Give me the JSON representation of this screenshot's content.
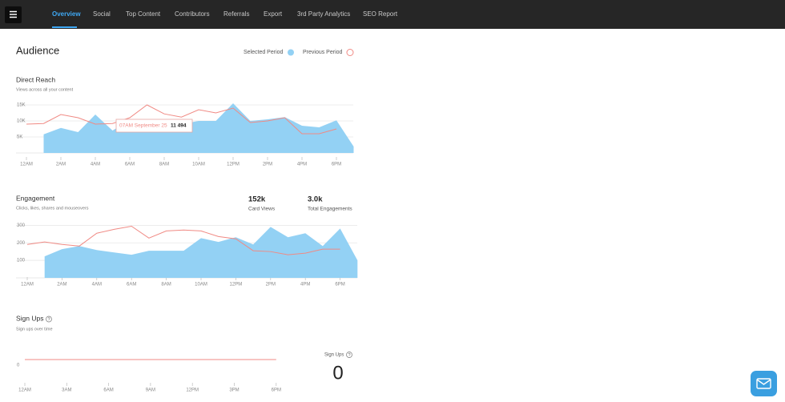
{
  "nav": {
    "items": [
      "Overview",
      "Social",
      "Top Content",
      "Contributors",
      "Referrals",
      "Export",
      "3rd Party Analytics",
      "SEO Report"
    ]
  },
  "audience": {
    "title": "Audience"
  },
  "tooltip": {
    "time": "07AM September 25",
    "value": "11 494"
  },
  "stats": [
    {
      "value": "152k",
      "label": "Card Views"
    },
    {
      "value": "3.0k",
      "label": "Total Engagements"
    }
  ],
  "signup_widget": {
    "label": "Sign Ups",
    "value": "0"
  },
  "charts": [
    {
      "type": "area",
      "title": "Direct Reach",
      "subtitle": "Views across all your content",
      "categories": [
        "12AM",
        null,
        "2AM",
        null,
        "4AM",
        null,
        "6AM",
        null,
        "8AM",
        null,
        "10AM",
        null,
        "12PM",
        null,
        "2PM",
        null,
        "4PM",
        null,
        "6PM",
        null
      ],
      "series": [
        {
          "name": "Selected Period",
          "type": "area",
          "color": "#93d1f4",
          "values": [
            null,
            5800,
            7800,
            6500,
            12000,
            7000,
            10200,
            9800,
            8200,
            9000,
            10000,
            10000,
            15500,
            10000,
            10500,
            11200,
            8500,
            8000,
            10200,
            2000
          ]
        },
        {
          "name": "Previous Period",
          "type": "line",
          "color": "#f08a84",
          "values": [
            9000,
            9200,
            12000,
            11000,
            9000,
            9200,
            11000,
            15000,
            12200,
            11200,
            13500,
            12500,
            14000,
            9500,
            10000,
            11000,
            6000,
            6000,
            7500,
            null
          ]
        }
      ],
      "ylim": [
        0,
        16000
      ],
      "yticks": [
        {
          "value": 5000,
          "label": "5K"
        },
        {
          "value": 10000,
          "label": "10K"
        },
        {
          "value": 15000,
          "label": "15K"
        }
      ],
      "grid": true
    },
    {
      "type": "area",
      "title": "Engagement",
      "subtitle": "Clicks, likes, shares and mouseovers",
      "categories": [
        "12AM",
        null,
        "2AM",
        null,
        "4AM",
        null,
        "6AM",
        null,
        "8AM",
        null,
        "10AM",
        null,
        "12PM",
        null,
        "2PM",
        null,
        "4PM",
        null,
        "6PM",
        null
      ],
      "series": [
        {
          "type": "area",
          "color": "#93d1f4",
          "values": [
            null,
            123,
            164,
            182,
            159,
            145,
            132,
            155,
            155,
            155,
            227,
            205,
            232,
            191,
            291,
            232,
            255,
            182,
            282,
            100
          ]
        },
        {
          "type": "line",
          "color": "#f08a84",
          "values": [
            191,
            205,
            191,
            182,
            255,
            277,
            295,
            227,
            268,
            273,
            268,
            236,
            223,
            155,
            150,
            132,
            141,
            164,
            164,
            null
          ]
        }
      ],
      "ylim": [
        0,
        320
      ],
      "yticks": [
        100,
        200,
        300
      ],
      "grid": true
    },
    {
      "type": "line",
      "title": "Sign Ups",
      "subtitle": "Sign ups over time",
      "categories": [
        "12AM",
        "3AM",
        "6AM",
        "9AM",
        "12PM",
        "3PM",
        "6PM"
      ],
      "series": [
        {
          "type": "line",
          "color": "#f08a84",
          "values": [
            0,
            0,
            0,
            0,
            0,
            0,
            0
          ]
        }
      ],
      "ylim": [
        0,
        10
      ],
      "yticks": [
        0
      ],
      "grid": false
    }
  ]
}
